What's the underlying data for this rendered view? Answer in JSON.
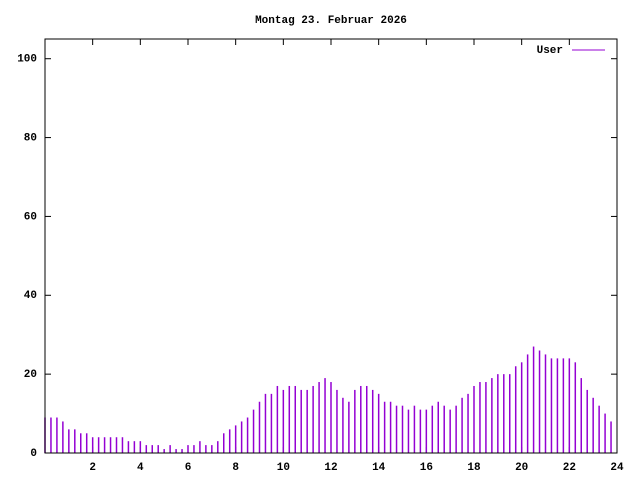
{
  "chart_data": {
    "type": "impulses",
    "title": "Montag 23. Februar 2026",
    "x": [
      0,
      0.25,
      0.5,
      0.75,
      1,
      1.25,
      1.5,
      1.75,
      2,
      2.25,
      2.5,
      2.75,
      3,
      3.25,
      3.5,
      3.75,
      4,
      4.25,
      4.5,
      4.75,
      5,
      5.25,
      5.5,
      5.75,
      6,
      6.25,
      6.5,
      6.75,
      7,
      7.25,
      7.5,
      7.75,
      8,
      8.25,
      8.5,
      8.75,
      9,
      9.25,
      9.5,
      9.75,
      10,
      10.25,
      10.5,
      10.75,
      11,
      11.25,
      11.5,
      11.75,
      12,
      12.25,
      12.5,
      12.75,
      13,
      13.25,
      13.5,
      13.75,
      14,
      14.25,
      14.5,
      14.75,
      15,
      15.25,
      15.5,
      15.75,
      16,
      16.25,
      16.5,
      16.75,
      17,
      17.25,
      17.5,
      17.75,
      18,
      18.25,
      18.5,
      18.75,
      19,
      19.25,
      19.5,
      19.75,
      20,
      20.25,
      20.5,
      20.75,
      21,
      21.25,
      21.5,
      21.75,
      22,
      22.25,
      22.5,
      22.75,
      23,
      23.25,
      23.5,
      23.75
    ],
    "series": [
      {
        "name": "User",
        "color": "#9400d3",
        "values": [
          9,
          9,
          9,
          8,
          6,
          6,
          5,
          5,
          4,
          4,
          4,
          4,
          4,
          4,
          3,
          3,
          3,
          2,
          2,
          2,
          1,
          2,
          1,
          1,
          2,
          2,
          3,
          2,
          2,
          3,
          5,
          6,
          7,
          8,
          9,
          11,
          13,
          15,
          15,
          17,
          16,
          17,
          17,
          16,
          16,
          17,
          18,
          19,
          18,
          16,
          14,
          13,
          16,
          17,
          17,
          16,
          15,
          13,
          13,
          12,
          12,
          11,
          12,
          11,
          11,
          12,
          13,
          12,
          11,
          12,
          14,
          15,
          17,
          18,
          18,
          19,
          20,
          20,
          20,
          22,
          23,
          25,
          27,
          26,
          25,
          24,
          24,
          24,
          24,
          23,
          19,
          16,
          14,
          12,
          10,
          8
        ]
      }
    ],
    "xlim": [
      0,
      24
    ],
    "xticks": [
      2,
      4,
      6,
      8,
      10,
      12,
      14,
      16,
      18,
      20,
      22,
      24
    ],
    "ylim": [
      0,
      105
    ],
    "yticks": [
      0,
      20,
      40,
      60,
      80,
      100
    ],
    "grid": false,
    "legend": "top-right"
  }
}
